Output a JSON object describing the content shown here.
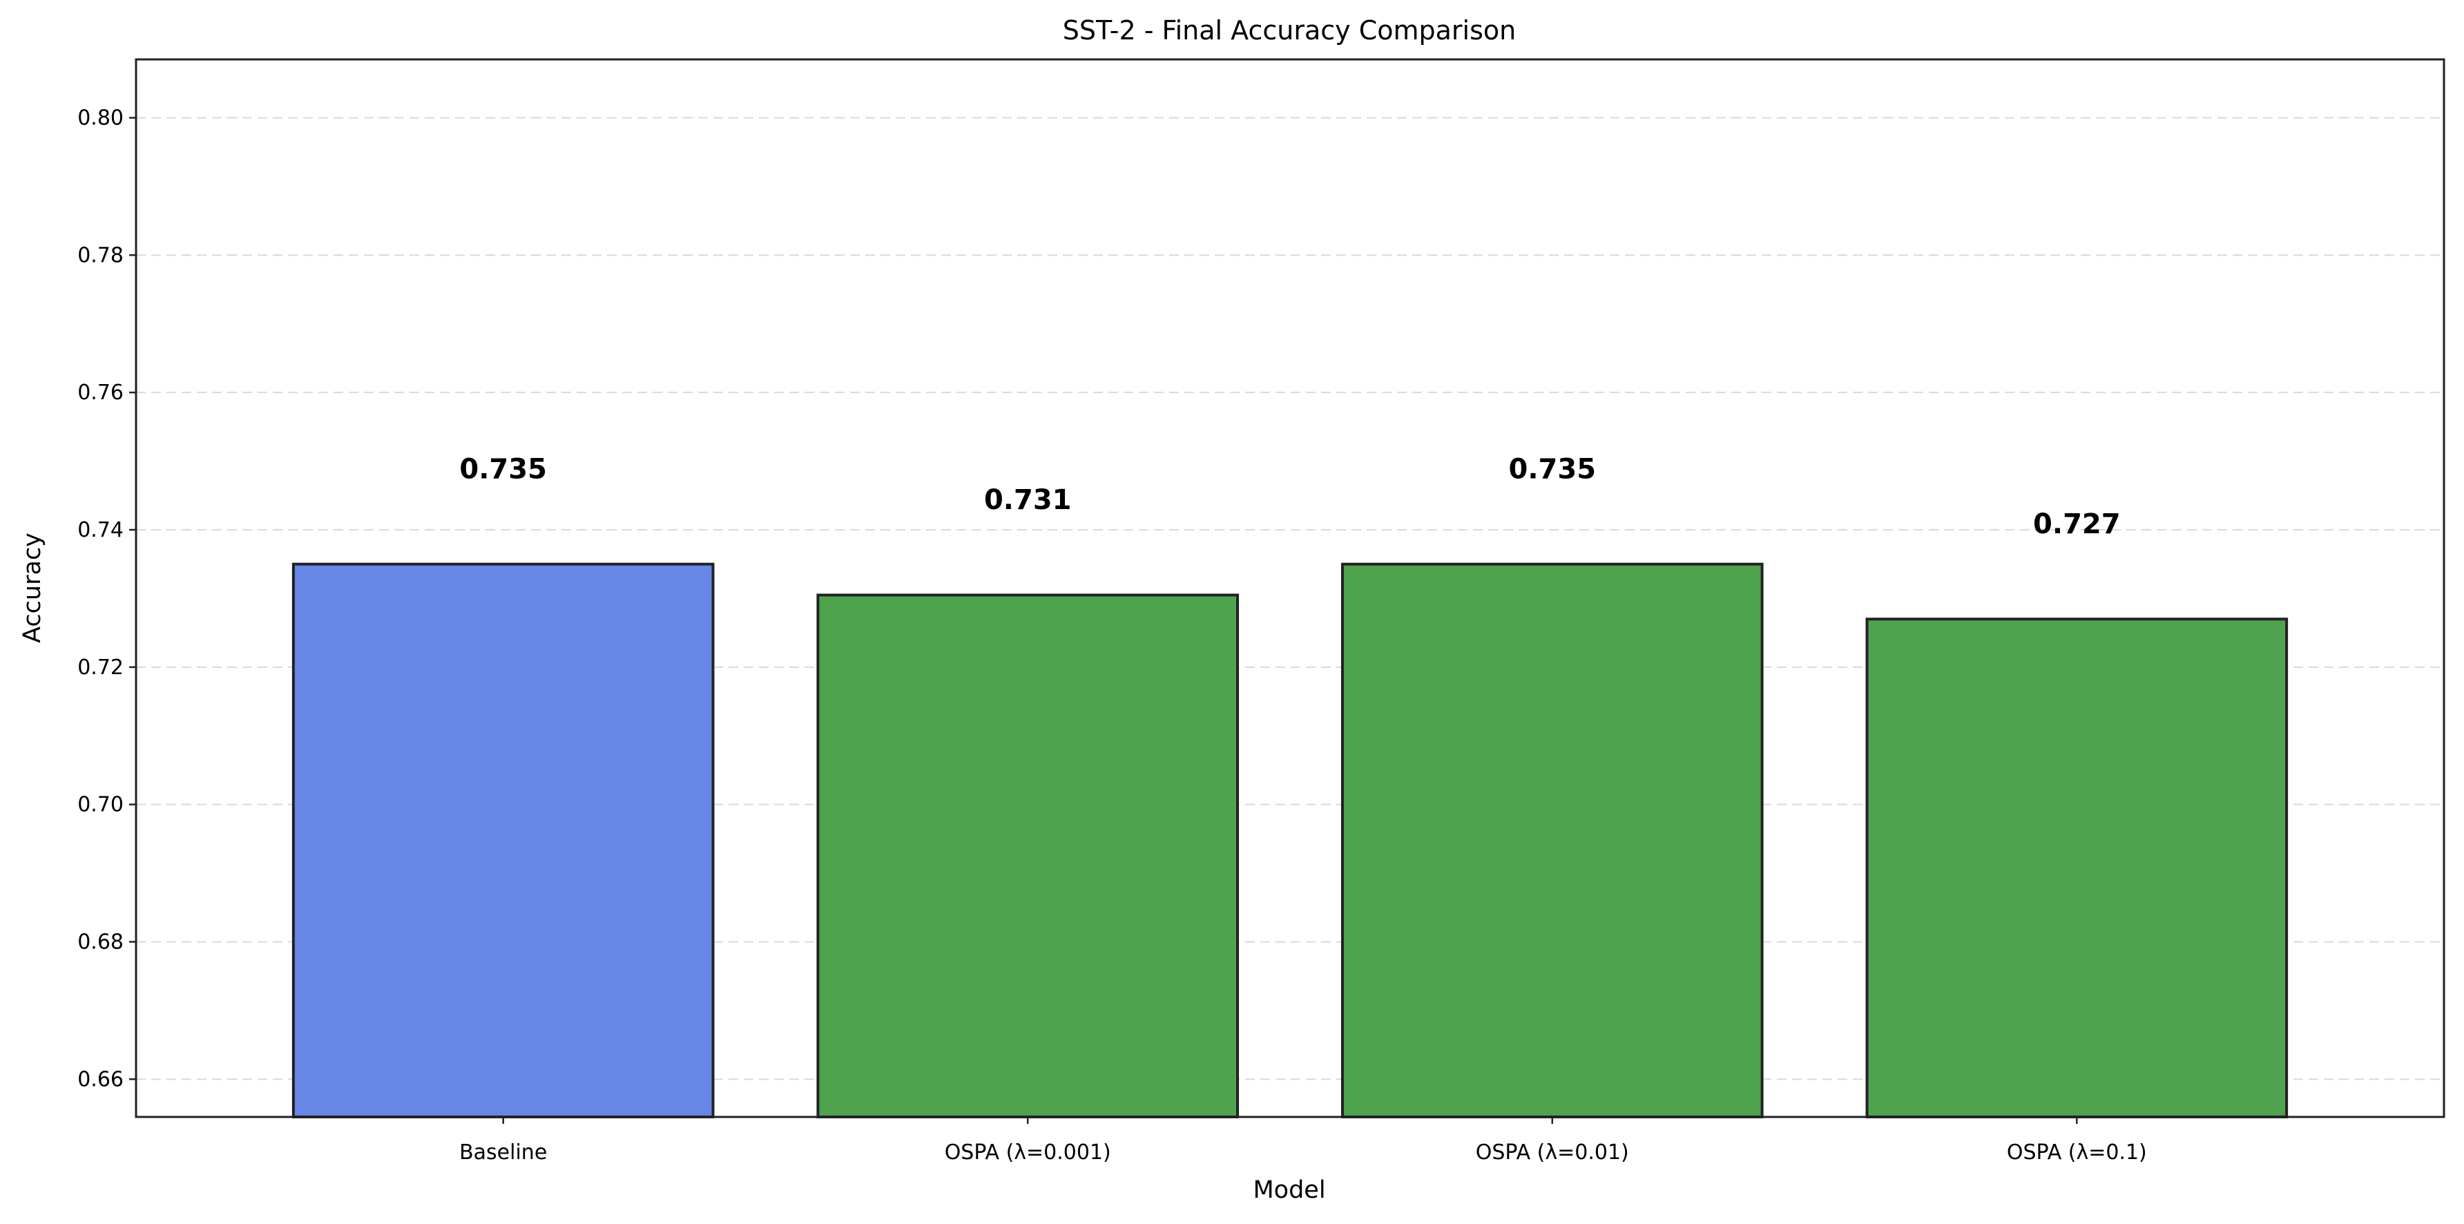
{
  "chart_data": {
    "type": "bar",
    "title": "SST-2 - Final Accuracy Comparison",
    "xlabel": "Model",
    "ylabel": "Accuracy",
    "categories": [
      "Baseline",
      "OSPA (λ=0.001)",
      "OSPA (λ=0.01)",
      "OSPA (λ=0.1)"
    ],
    "values": [
      0.735,
      0.7305,
      0.735,
      0.727
    ],
    "value_labels": [
      "0.735",
      "0.731",
      "0.735",
      "0.727"
    ],
    "bar_colors": [
      "#6687e6",
      "#4fa34f",
      "#4fa34f",
      "#4fa34f"
    ],
    "edge_color": "#222222",
    "ylim": [
      0.6545,
      0.8085
    ],
    "yticks": [
      0.66,
      0.68,
      0.7,
      0.72,
      0.74,
      0.76,
      0.78,
      0.8
    ],
    "ytick_labels": [
      "0.66",
      "0.68",
      "0.70",
      "0.72",
      "0.74",
      "0.76",
      "0.78",
      "0.80"
    ],
    "grid": true,
    "legend": false
  }
}
